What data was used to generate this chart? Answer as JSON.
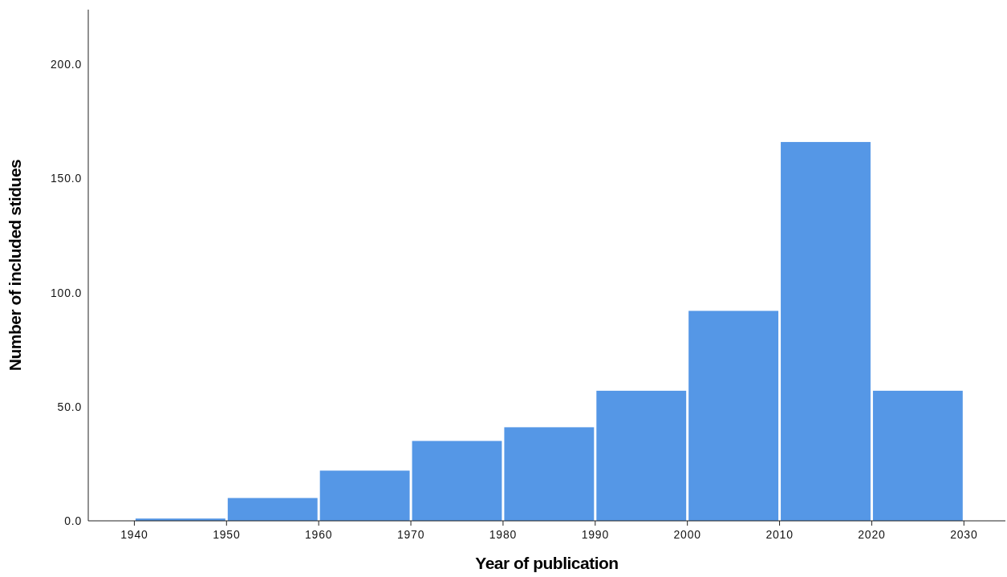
{
  "chart_data": {
    "type": "histogram",
    "xlabel": "Year of publication",
    "ylabel": "Number of included stidues",
    "bins": [
      1940,
      1950,
      1960,
      1970,
      1980,
      1990,
      2000,
      2010,
      2020,
      2030
    ],
    "values": [
      1,
      10,
      22,
      35,
      41,
      57,
      92,
      166,
      57
    ],
    "color": "#5597e6",
    "xlim": [
      1935,
      2034.5
    ],
    "xticks": [
      1940,
      1950,
      1960,
      1970,
      1980,
      1990,
      2000,
      2010,
      2020,
      2030
    ],
    "ylim": [
      0,
      224
    ],
    "yticks": [
      {
        "value": 0,
        "label": "0.0"
      },
      {
        "value": 50,
        "label": "50.0"
      },
      {
        "value": 100,
        "label": "100.0"
      },
      {
        "value": 150,
        "label": "150.0"
      },
      {
        "value": 200,
        "label": "200.0"
      }
    ],
    "grid": false
  }
}
